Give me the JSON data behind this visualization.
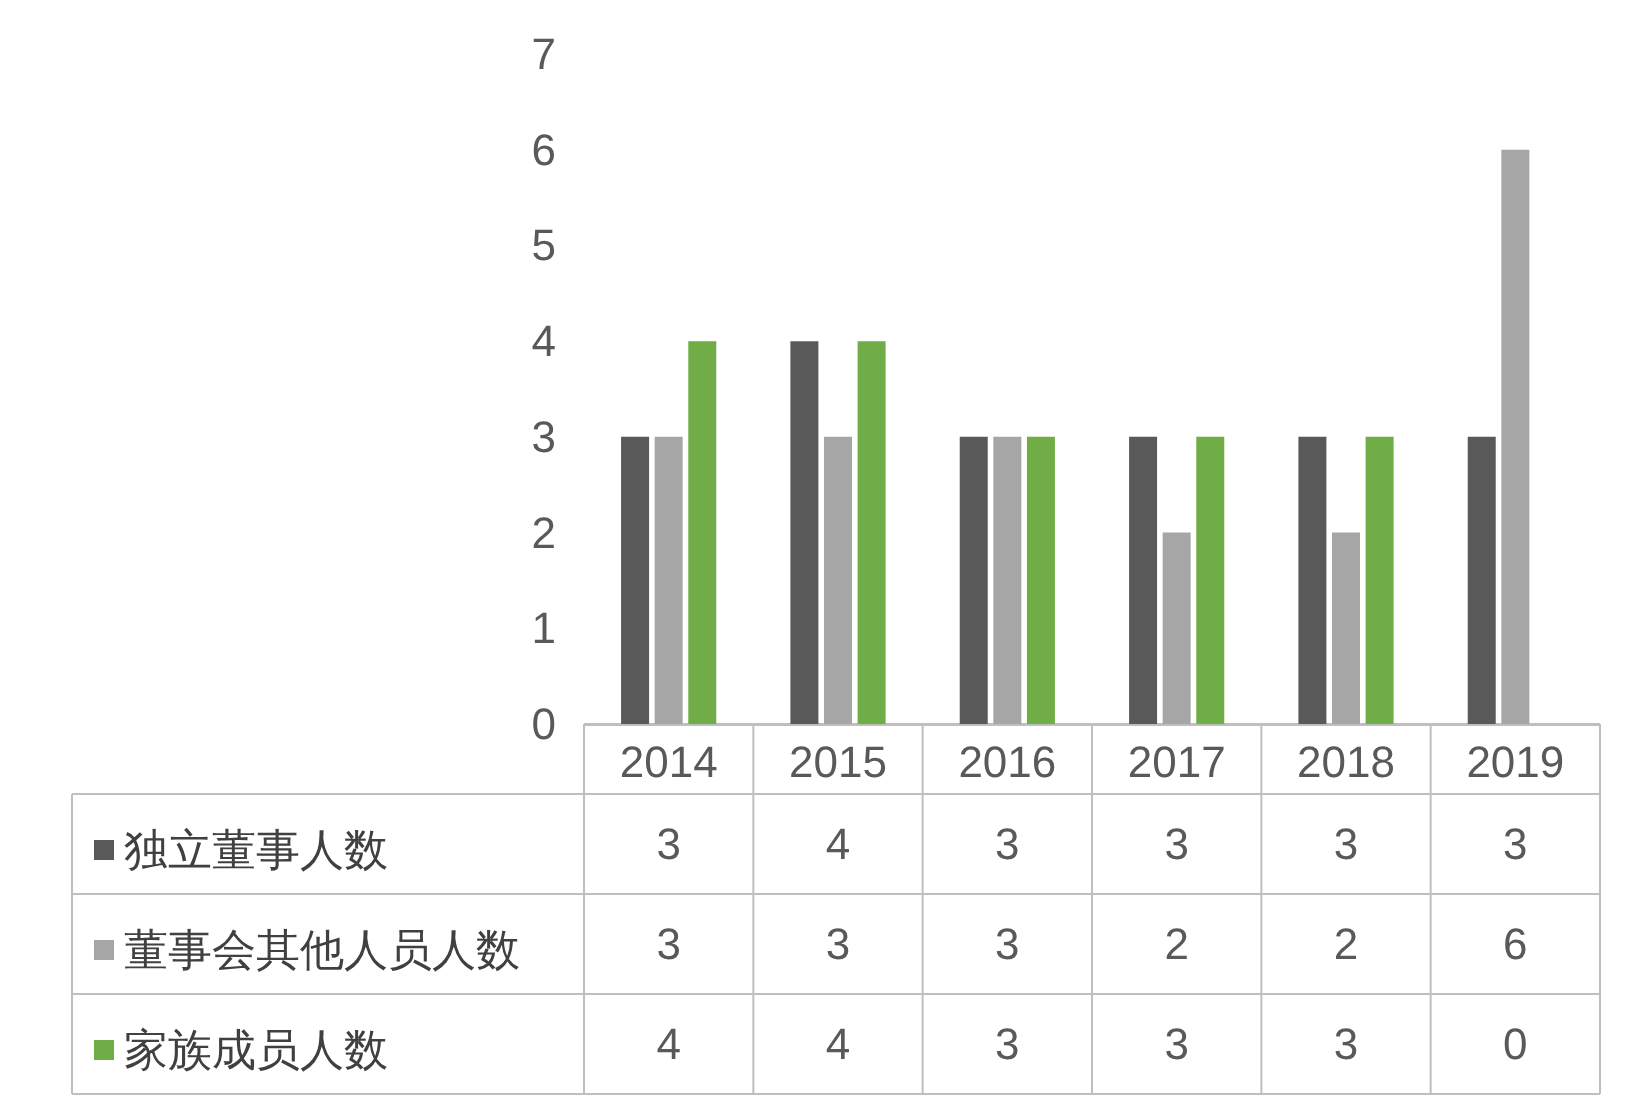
{
  "chart_data": {
    "type": "bar",
    "categories": [
      "2014",
      "2015",
      "2016",
      "2017",
      "2018",
      "2019"
    ],
    "series": [
      {
        "name": "独立董事人数",
        "color": "#595959",
        "values": [
          3,
          4,
          3,
          3,
          3,
          3
        ]
      },
      {
        "name": "董事会其他人员人数",
        "color": "#a6a6a6",
        "values": [
          3,
          3,
          3,
          2,
          2,
          6
        ]
      },
      {
        "name": "家族成员人数",
        "color": "#70ad47",
        "values": [
          4,
          4,
          3,
          3,
          3,
          0
        ]
      }
    ],
    "ylim": [
      0,
      7
    ],
    "yticks": [
      0,
      1,
      2,
      3,
      4,
      5,
      6,
      7
    ],
    "grid": false,
    "legend": "bottom",
    "data_labels": true
  }
}
